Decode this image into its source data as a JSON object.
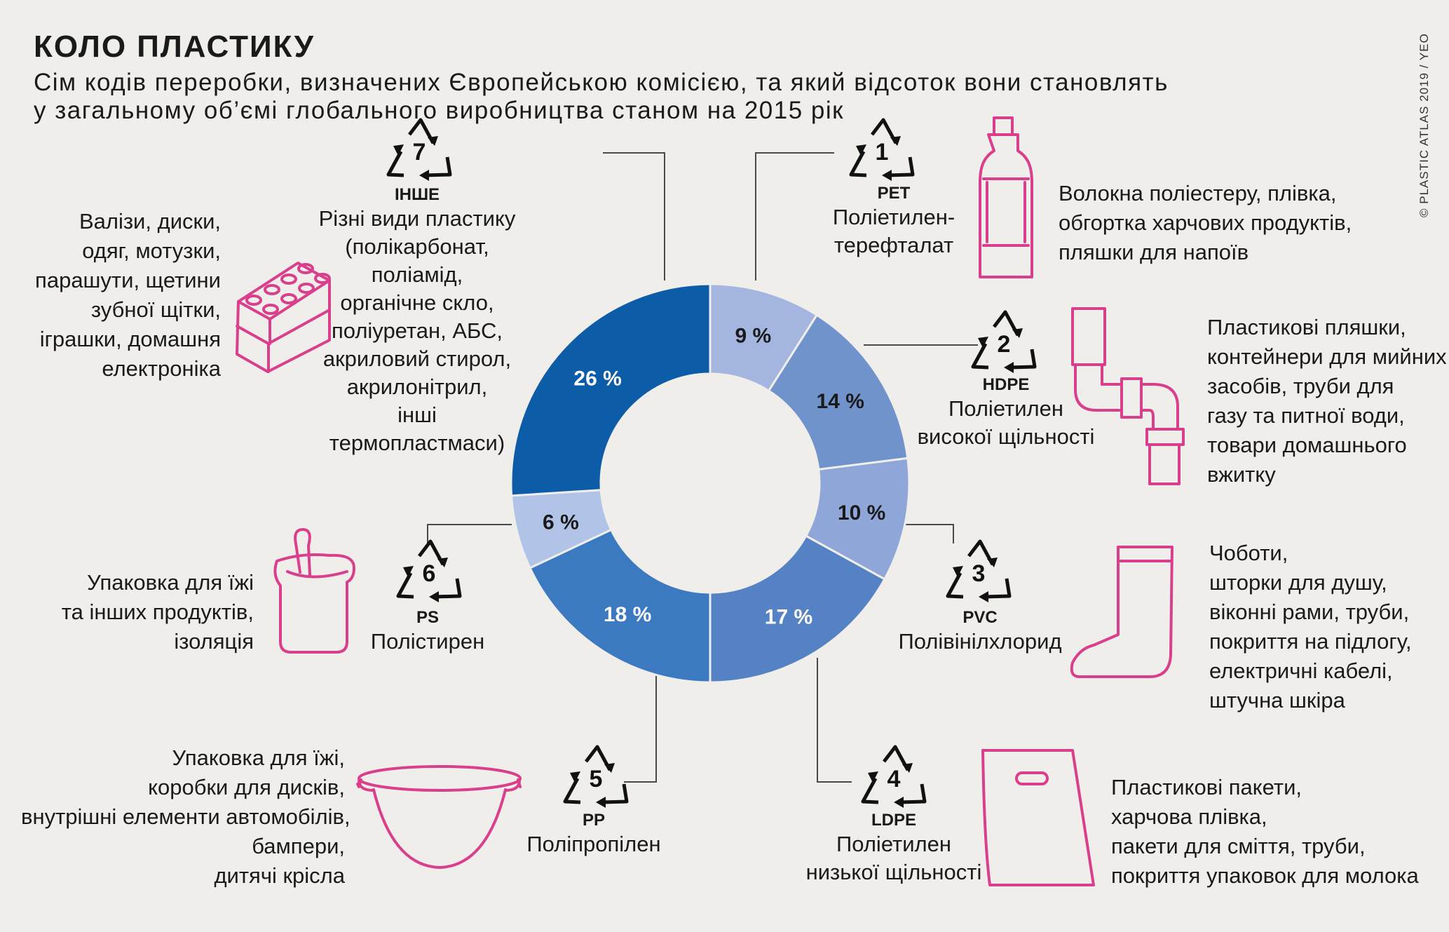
{
  "header": {
    "title": "КОЛО ПЛАСТИКУ",
    "subtitle_line1": "Сім кодів переробки, визначених Європейською комісією, та який відсоток вони становлять",
    "subtitle_line2": "у загальному об’ємі глобального виробництва станом на 2015 рік"
  },
  "credit": "© PLASTIC ATLAS 2019 / YEO",
  "colors": {
    "background": "#f0eeea",
    "icon_stroke": "#d93f8c",
    "line": "#4a4a4a"
  },
  "chart_data": {
    "type": "pie",
    "donut": true,
    "categories": [
      "1",
      "2",
      "3",
      "4",
      "5",
      "6",
      "7"
    ],
    "values": [
      9,
      14,
      10,
      17,
      18,
      6,
      26
    ],
    "value_labels": [
      "9 %",
      "14 %",
      "10 %",
      "17 %",
      "18 %",
      "6 %",
      "26 %"
    ],
    "colors": [
      "#a4b6df",
      "#7093cb",
      "#8fa7d8",
      "#5482c4",
      "#3b79c0",
      "#b1c4e8",
      "#0c5ca8"
    ],
    "label_colors": [
      "#1a1a1a",
      "#1a1a1a",
      "#1a1a1a",
      "#ffffff",
      "#ffffff",
      "#1a1a1a",
      "#ffffff"
    ]
  },
  "plastics": [
    {
      "number": "1",
      "code": "PET",
      "name_lines": [
        "Поліетилен-",
        "терефталат"
      ],
      "uses": [
        "Волокна поліестеру, плівка,",
        "обгортка харчових продуктів,",
        "пляшки для напоїв"
      ],
      "icon": "bottle-icon"
    },
    {
      "number": "2",
      "code": "HDPE",
      "name_lines": [
        "Поліетилен",
        "високої щільності"
      ],
      "uses": [
        "Пластикові пляшки,",
        "контейнери для мийних",
        "засобів, труби для",
        "газу та питної води,",
        "товари домашнього",
        "вжитку"
      ],
      "icon": "pipe-icon"
    },
    {
      "number": "3",
      "code": "PVC",
      "name_lines": [
        "Полівінілхлорид"
      ],
      "uses": [
        "Чоботи,",
        "шторки для душу,",
        "віконні рами, труби,",
        "покриття на підлогу,",
        "електричні кабелі,",
        "штучна шкіра"
      ],
      "icon": "boot-icon"
    },
    {
      "number": "4",
      "code": "LDPE",
      "name_lines": [
        "Поліетилен",
        "низької щільності"
      ],
      "uses": [
        "Пластикові пакети,",
        "харчова плівка,",
        "пакети для сміття, труби,",
        "покриття упаковок для молока"
      ],
      "icon": "bag-icon"
    },
    {
      "number": "5",
      "code": "PP",
      "name_lines": [
        "Поліпропілен"
      ],
      "uses": [
        "Упаковка для їжі,",
        "коробки для дисків,",
        "внутрішні елементи автомобілів,",
        "бампери,",
        "дитячі крісла"
      ],
      "icon": "bowl-icon"
    },
    {
      "number": "6",
      "code": "PS",
      "name_lines": [
        "Полістирен"
      ],
      "uses": [
        "Упаковка для їжі",
        "та інших продуктів,",
        "ізоляція"
      ],
      "icon": "yogurt-cup-icon"
    },
    {
      "number": "7",
      "code": "ІНШЕ",
      "name_lines": [
        "Різні види пластику",
        "(полікарбонат, поліамід,",
        "органічне скло,",
        "поліуретан, АБС,",
        "акриловий стирол,",
        "акрилонітрил,",
        "інші термопластмаси)"
      ],
      "uses": [
        "Валізи, диски,",
        "одяг, мотузки,",
        "парашути, щетини",
        "зубної щітки,",
        "іграшки, домашня",
        "електроніка"
      ],
      "icon": "toy-brick-icon"
    }
  ]
}
